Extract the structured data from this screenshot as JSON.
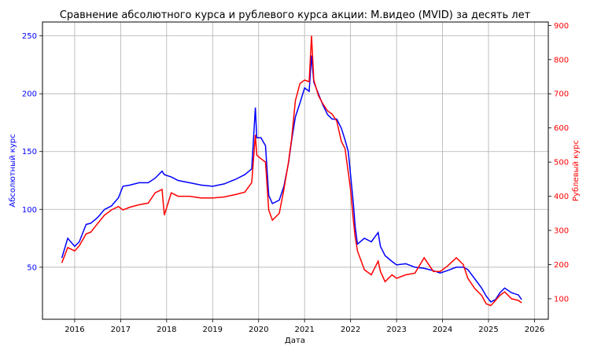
{
  "chart_data": {
    "type": "line",
    "title": "Сравнение абсолютного курса и рублевого курса акции: М.видео (MVID) за десять лет",
    "xlabel": "Дата",
    "ylabel_left": "Абсолютный курс",
    "ylabel_right": "Рублевый курс",
    "grid": true,
    "xlim": [
      2015.3,
      2026.3
    ],
    "ylim_left": [
      5,
      262
    ],
    "ylim_right": [
      40,
      910
    ],
    "x_ticks": [
      2016,
      2017,
      2018,
      2019,
      2020,
      2021,
      2022,
      2023,
      2024,
      2025,
      2026
    ],
    "x_tick_labels": [
      "2016",
      "2017",
      "2018",
      "2019",
      "2020",
      "2021",
      "2022",
      "2023",
      "2024",
      "2025",
      "2026"
    ],
    "y_left_ticks": [
      50,
      100,
      150,
      200,
      250
    ],
    "y_left_tick_labels": [
      "50",
      "100",
      "150",
      "200",
      "250"
    ],
    "y_right_ticks": [
      100,
      200,
      300,
      400,
      500,
      600,
      700,
      800,
      900
    ],
    "y_right_tick_labels": [
      "100",
      "200",
      "300",
      "400",
      "500",
      "600",
      "700",
      "800",
      "900"
    ],
    "colors": {
      "absolute": "#0000ff",
      "ruble": "#ff0000",
      "grid": "#b0b0b0"
    },
    "series": [
      {
        "name": "Абсолютный курс",
        "axis": "left",
        "color": "#0000ff",
        "x": [
          2015.72,
          2015.85,
          2016.0,
          2016.1,
          2016.25,
          2016.35,
          2016.5,
          2016.65,
          2016.8,
          2016.95,
          2017.05,
          2017.2,
          2017.4,
          2017.6,
          2017.75,
          2017.9,
          2017.95,
          2018.1,
          2018.25,
          2018.5,
          2018.75,
          2019.0,
          2019.25,
          2019.5,
          2019.7,
          2019.85,
          2019.93,
          2019.96,
          2020.05,
          2020.15,
          2020.22,
          2020.3,
          2020.45,
          2020.55,
          2020.65,
          2020.72,
          2020.8,
          2020.9,
          2021.0,
          2021.1,
          2021.15,
          2021.2,
          2021.3,
          2021.4,
          2021.5,
          2021.6,
          2021.7,
          2021.8,
          2021.88,
          2021.95,
          2022.0,
          2022.06,
          2022.1,
          2022.15,
          2022.3,
          2022.45,
          2022.6,
          2022.65,
          2022.75,
          2022.9,
          2023.0,
          2023.2,
          2023.4,
          2023.6,
          2023.8,
          2023.95,
          2024.1,
          2024.3,
          2024.45,
          2024.55,
          2024.7,
          2024.85,
          2024.95,
          2025.05,
          2025.15,
          2025.25,
          2025.35,
          2025.5,
          2025.65,
          2025.72
        ],
        "values": [
          58,
          75,
          68,
          72,
          87,
          88,
          93,
          100,
          103,
          110,
          120,
          121,
          123,
          123,
          127,
          133,
          130,
          128,
          125,
          123,
          121,
          120,
          122,
          126,
          130,
          135,
          188,
          162,
          162,
          155,
          112,
          105,
          108,
          120,
          140,
          160,
          180,
          192,
          205,
          202,
          233,
          210,
          200,
          190,
          182,
          178,
          178,
          170,
          160,
          150,
          130,
          105,
          85,
          70,
          75,
          72,
          80,
          68,
          60,
          55,
          52,
          53,
          50,
          49,
          47,
          45,
          47,
          50,
          50,
          48,
          40,
          32,
          25,
          20,
          22,
          28,
          32,
          28,
          26,
          22
        ]
      },
      {
        "name": "Рублевый курс",
        "axis": "right",
        "color": "#ff0000",
        "x": [
          2015.72,
          2015.85,
          2016.0,
          2016.1,
          2016.25,
          2016.35,
          2016.5,
          2016.65,
          2016.8,
          2016.95,
          2017.05,
          2017.2,
          2017.4,
          2017.6,
          2017.75,
          2017.9,
          2017.95,
          2018.1,
          2018.25,
          2018.5,
          2018.75,
          2019.0,
          2019.25,
          2019.5,
          2019.7,
          2019.85,
          2019.93,
          2019.96,
          2020.05,
          2020.15,
          2020.22,
          2020.3,
          2020.45,
          2020.55,
          2020.65,
          2020.72,
          2020.8,
          2020.9,
          2021.0,
          2021.1,
          2021.15,
          2021.2,
          2021.3,
          2021.4,
          2021.5,
          2021.6,
          2021.7,
          2021.8,
          2021.88,
          2021.95,
          2022.0,
          2022.06,
          2022.1,
          2022.15,
          2022.3,
          2022.45,
          2022.6,
          2022.65,
          2022.75,
          2022.9,
          2023.0,
          2023.2,
          2023.4,
          2023.6,
          2023.8,
          2023.95,
          2024.1,
          2024.3,
          2024.45,
          2024.55,
          2024.7,
          2024.85,
          2024.95,
          2025.05,
          2025.15,
          2025.25,
          2025.35,
          2025.5,
          2025.65,
          2025.72
        ],
        "values": [
          205,
          250,
          240,
          255,
          290,
          295,
          320,
          345,
          360,
          370,
          360,
          368,
          375,
          380,
          410,
          420,
          345,
          410,
          400,
          400,
          395,
          395,
          398,
          405,
          412,
          440,
          580,
          520,
          510,
          500,
          360,
          330,
          350,
          420,
          500,
          570,
          680,
          730,
          740,
          735,
          870,
          740,
          695,
          670,
          650,
          640,
          620,
          560,
          540,
          470,
          420,
          330,
          280,
          240,
          185,
          170,
          210,
          180,
          150,
          170,
          160,
          170,
          175,
          220,
          180,
          180,
          195,
          220,
          200,
          160,
          130,
          110,
          85,
          80,
          95,
          110,
          120,
          100,
          95,
          88
        ]
      }
    ]
  }
}
